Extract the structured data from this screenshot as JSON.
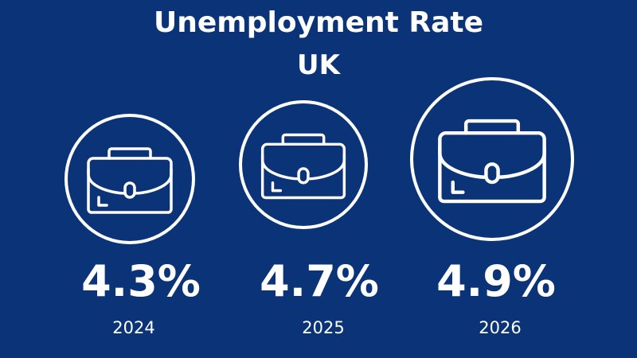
{
  "chart_data": {
    "type": "infographic",
    "title": "Unemployment Rate",
    "subtitle": "UK",
    "categories": [
      "2024",
      "2025",
      "2026"
    ],
    "values": [
      4.3,
      4.7,
      4.9
    ],
    "labels": [
      "4.3%",
      "4.7%",
      "4.9%"
    ],
    "icon": "briefcase-icon",
    "colors": {
      "background": "#0b3478",
      "foreground": "#ffffff"
    }
  }
}
